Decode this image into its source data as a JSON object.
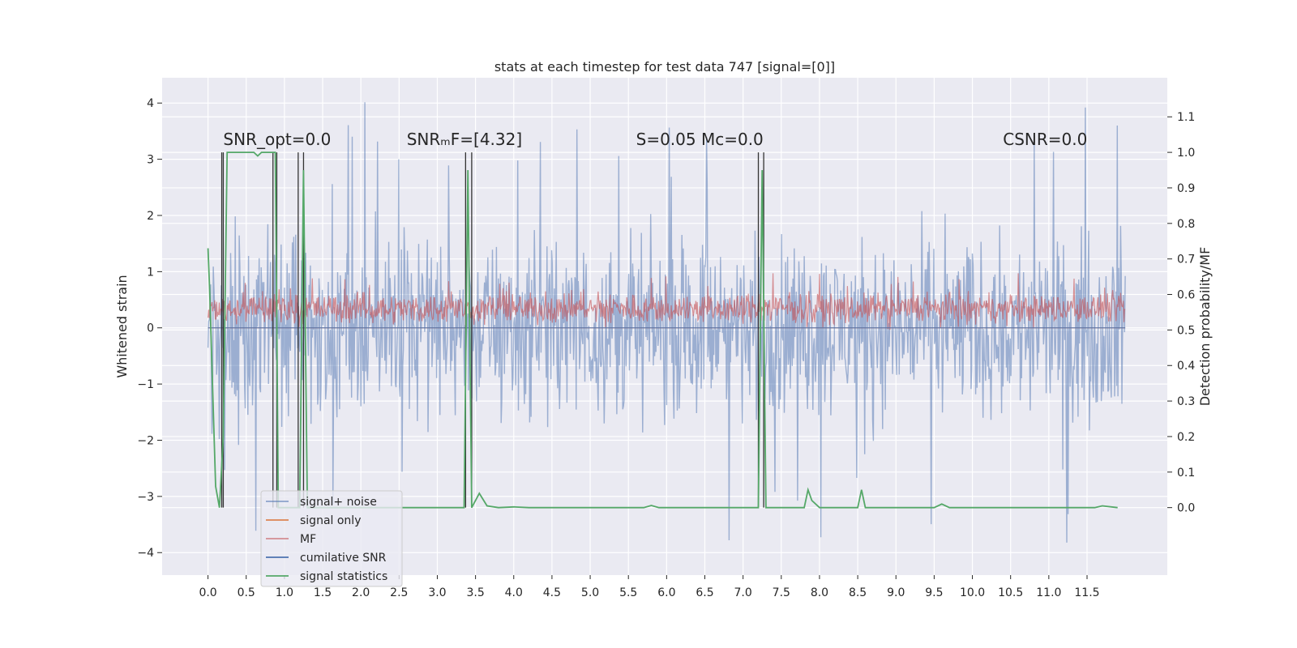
{
  "chart_data": {
    "type": "line",
    "title": "stats at each timestep for test data 747 [signal=[0]]",
    "ylabel": "Whitened strain",
    "ylabel_right": "Detection probability/MF",
    "xlim": [
      -0.6,
      12.55
    ],
    "ylim": [
      -4.4,
      4.45
    ],
    "ylim_right": [
      -0.19,
      1.21
    ],
    "x_ticks": [
      0.0,
      0.5,
      1.0,
      1.5,
      2.0,
      2.5,
      3.0,
      3.5,
      4.0,
      4.5,
      5.0,
      5.5,
      6.0,
      6.5,
      7.0,
      7.5,
      8.0,
      8.5,
      9.0,
      9.5,
      10.0,
      10.5,
      11.0,
      11.5
    ],
    "x_tick_labels": [
      "0.0",
      "0.5",
      "1.0",
      "1.5",
      "2.0",
      "2.5",
      "3.0",
      "3.5",
      "4.0",
      "4.5",
      "5.0",
      "5.5",
      "6.0",
      "6.5",
      "7.0",
      "7.5",
      "8.0",
      "8.5",
      "9.0",
      "9.5",
      "10.0",
      "10.5",
      "11.0",
      "11.5"
    ],
    "y_ticks": [
      4,
      3,
      2,
      1,
      0,
      -1,
      -2,
      -3,
      -4
    ],
    "y_tick_labels": [
      "4",
      "3",
      "2",
      "1",
      "0",
      "−1",
      "−2",
      "−3",
      "−4"
    ],
    "y_ticks_right": [
      1.1,
      1.0,
      0.9,
      0.8,
      0.7,
      0.6,
      0.5,
      0.4,
      0.3,
      0.2,
      0.1,
      0.0
    ],
    "y_tick_labels_right": [
      "1.1",
      "1.0",
      "0.9",
      "0.8",
      "0.7",
      "0.6",
      "0.5",
      "0.4",
      "0.3",
      "0.2",
      "0.1",
      "0.0"
    ],
    "grid": true,
    "legend_position": "lower-left",
    "annotations": [
      {
        "text": "SNR_opt=0.0",
        "x": 0.2,
        "y": 3.3
      },
      {
        "text": "SNRₘF=[4.32]",
        "x": 2.6,
        "y": 3.3
      },
      {
        "text": "S=0.05   Mᴄ=0.0",
        "x": 5.6,
        "y": 3.3
      },
      {
        "text": "CSNR=0.0",
        "x": 10.4,
        "y": 3.3
      }
    ],
    "series": [
      {
        "name": "signal+ noise",
        "color": "#4c72b0",
        "opacity": 0.5,
        "axis": "left",
        "kind": "noise band",
        "x_range": [
          0.0,
          12.0
        ],
        "points_per_unit": 115,
        "typical_range": [
          -2.2,
          2.2
        ],
        "extreme_range": [
          -3.9,
          4.1
        ]
      },
      {
        "name": "signal only",
        "color": "#dd8452",
        "axis": "left",
        "x": [
          0.0,
          12.0
        ],
        "y": [
          0.0,
          0.0
        ]
      },
      {
        "name": "MF",
        "color": "#c44e52",
        "opacity": 0.6,
        "axis": "right",
        "kind": "noise band",
        "x_range": [
          0.0,
          12.0
        ],
        "points_per_unit": 115,
        "typical_range": [
          0.5,
          0.62
        ],
        "extreme_range": [
          0.5,
          0.66
        ]
      },
      {
        "name": "cumilative SNR",
        "color": "#4c72b0",
        "axis": "left",
        "x": [
          0.0,
          12.0
        ],
        "y": [
          0.0,
          0.0
        ]
      },
      {
        "name": "signal statistics",
        "color": "#55a868",
        "axis": "right",
        "x": [
          0.0,
          0.02,
          0.1,
          0.15,
          0.2,
          0.25,
          0.6,
          0.65,
          0.7,
          0.88,
          0.9,
          0.92,
          1.2,
          1.25,
          1.3,
          3.35,
          3.4,
          3.45,
          3.55,
          3.65,
          3.8,
          4.0,
          4.2,
          5.7,
          5.8,
          5.9,
          7.2,
          7.25,
          7.3,
          7.8,
          7.85,
          7.9,
          8.0,
          8.5,
          8.55,
          8.6,
          9.5,
          9.6,
          9.7,
          11.6,
          11.7,
          11.9
        ],
        "y": [
          0.73,
          0.62,
          0.06,
          0.0,
          0.2,
          1.0,
          1.0,
          0.99,
          1.0,
          1.0,
          0.55,
          0.0,
          0.0,
          0.95,
          0.0,
          0.0,
          0.95,
          0.0,
          0.04,
          0.005,
          0.0,
          0.002,
          0.0,
          0.0,
          0.006,
          0.0,
          0.0,
          0.95,
          0.0,
          0.0,
          0.05,
          0.02,
          0.0,
          0.0,
          0.05,
          0.0,
          0.0,
          0.01,
          0.0,
          0.0,
          0.005,
          0.0
        ]
      }
    ]
  },
  "segments": [
    [
      0.18,
      0.2
    ],
    [
      0.85,
      0.9
    ],
    [
      1.18,
      1.25
    ],
    [
      3.37,
      3.45
    ],
    [
      7.2,
      7.27
    ]
  ]
}
